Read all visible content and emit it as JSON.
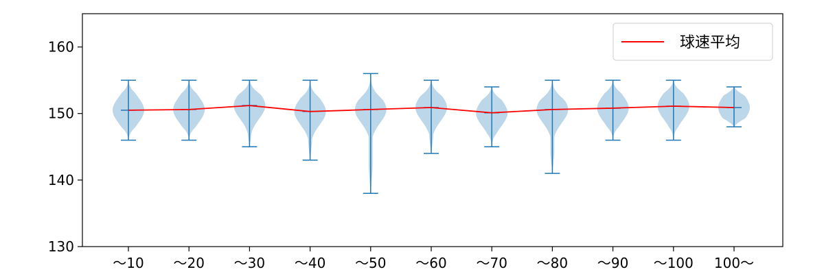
{
  "chart_data": {
    "type": "violin",
    "categories": [
      "〜10",
      "〜20",
      "〜30",
      "〜40",
      "〜50",
      "〜60",
      "〜70",
      "〜80",
      "〜90",
      "〜100",
      "100〜"
    ],
    "ylim": [
      130,
      165
    ],
    "yticks": [
      130,
      140,
      150,
      160
    ],
    "legend_position": "top-right",
    "mean_line": {
      "name": "球速平均",
      "color": "#ff0000",
      "values": [
        150.5,
        150.6,
        151.2,
        150.3,
        150.6,
        150.9,
        150.1,
        150.6,
        150.8,
        151.1,
        150.9
      ]
    },
    "distributions": [
      {
        "min": 146,
        "max": 155,
        "mean": 150.5
      },
      {
        "min": 146,
        "max": 155,
        "mean": 150.6
      },
      {
        "min": 145,
        "max": 155,
        "mean": 151.2
      },
      {
        "min": 143,
        "max": 155,
        "mean": 150.3
      },
      {
        "min": 138,
        "max": 156,
        "mean": 150.6
      },
      {
        "min": 144,
        "max": 155,
        "mean": 150.9
      },
      {
        "min": 145,
        "max": 154,
        "mean": 150.1
      },
      {
        "min": 141,
        "max": 155,
        "mean": 150.6
      },
      {
        "min": 146,
        "max": 155,
        "mean": 150.8
      },
      {
        "min": 146,
        "max": 155,
        "mean": 151.1
      },
      {
        "min": 148,
        "max": 154,
        "mean": 150.9
      }
    ],
    "violin_color": "#1f77b4",
    "violin_fill": "#bcd6ea"
  }
}
